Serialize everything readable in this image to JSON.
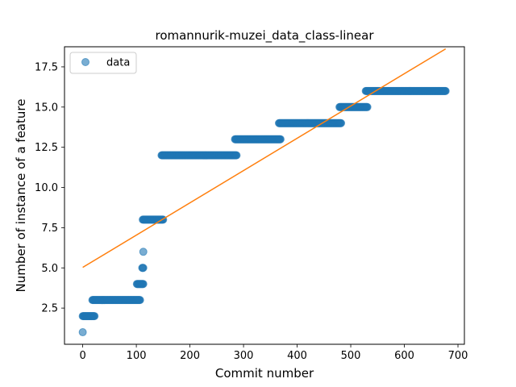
{
  "chart_data": {
    "type": "scatter",
    "title": "romannurik-muzei_data_class-linear",
    "xlabel": "Commit number",
    "ylabel": "Number of instance of a feature",
    "xlim": [
      -34,
      712
    ],
    "ylim": [
      0.25,
      18.75
    ],
    "xticks": [
      0,
      100,
      200,
      300,
      400,
      500,
      600,
      700
    ],
    "xtick_labels": [
      "0",
      "100",
      "200",
      "300",
      "400",
      "500",
      "600",
      "700"
    ],
    "yticks": [
      2.5,
      5.0,
      7.5,
      10.0,
      12.5,
      15.0,
      17.5
    ],
    "ytick_labels": [
      "2.5",
      "5.0",
      "7.5",
      "10.0",
      "12.5",
      "15.0",
      "17.5"
    ],
    "grid": false,
    "legend": {
      "position": "top-left",
      "entries": [
        "data"
      ]
    },
    "colors": {
      "points": "#1f77b4",
      "fit_line": "#ff7f0e"
    },
    "series": [
      {
        "name": "data",
        "kind": "scatter-runs",
        "runs": [
          {
            "y": 1,
            "x_start": 0,
            "x_end": 0
          },
          {
            "y": 2,
            "x_start": 0,
            "x_end": 22
          },
          {
            "y": 3,
            "x_start": 18,
            "x_end": 107
          },
          {
            "y": 4,
            "x_start": 101,
            "x_end": 113
          },
          {
            "y": 5,
            "x_start": 111,
            "x_end": 113
          },
          {
            "y": 6,
            "x_start": 113,
            "x_end": 113
          },
          {
            "y": 8,
            "x_start": 112,
            "x_end": 150
          },
          {
            "y": 12,
            "x_start": 147,
            "x_end": 287
          },
          {
            "y": 13,
            "x_start": 284,
            "x_end": 369
          },
          {
            "y": 14,
            "x_start": 366,
            "x_end": 482
          },
          {
            "y": 15,
            "x_start": 479,
            "x_end": 531
          },
          {
            "y": 16,
            "x_start": 528,
            "x_end": 677
          }
        ]
      },
      {
        "kind": "line",
        "points": [
          {
            "x": 0,
            "y": 5.03
          },
          {
            "x": 677,
            "y": 18.62
          }
        ]
      }
    ]
  }
}
